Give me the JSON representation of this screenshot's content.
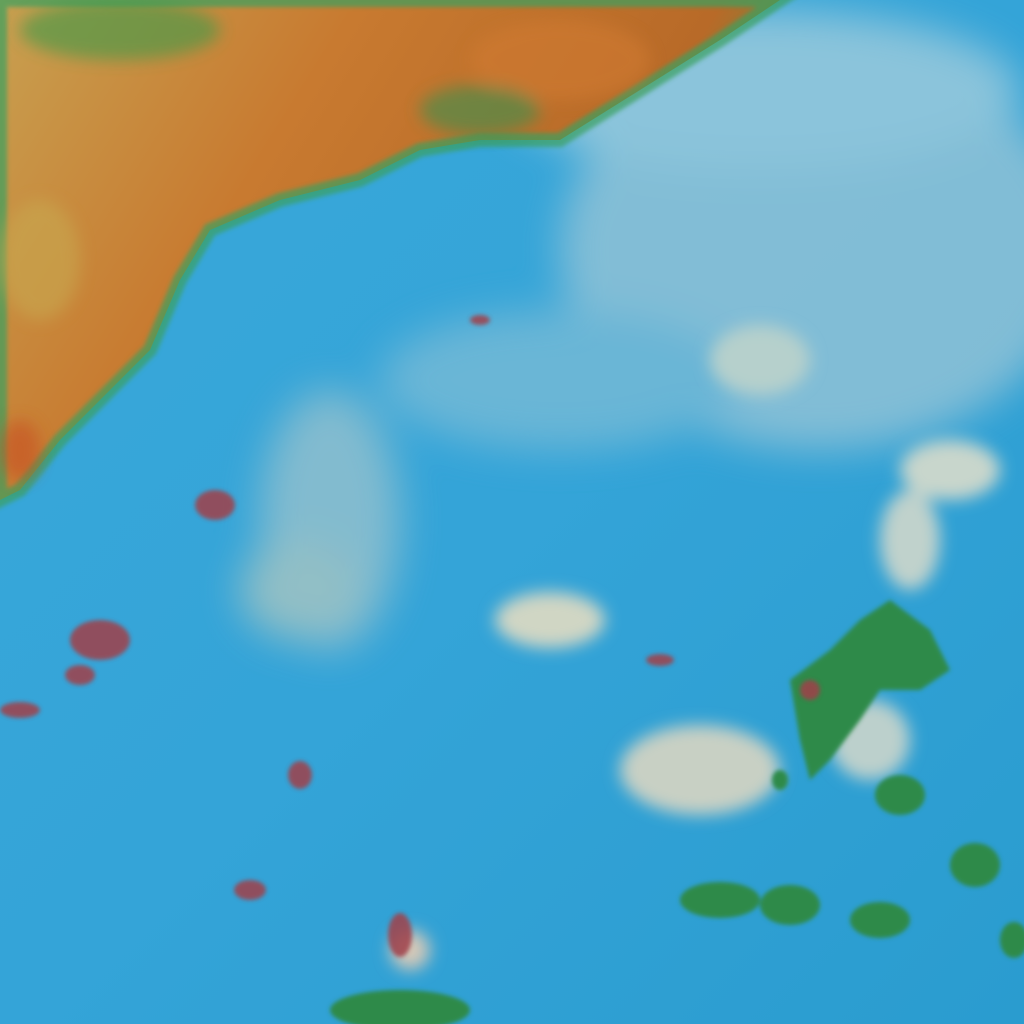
{
  "image": {
    "colors": {
      "ocean": "#2ea3d6",
      "ocean_light": "#5bb8e0",
      "haze": "#9cc7d8",
      "cloud": "#c8d6c8",
      "land_orange": "#c98a3a",
      "land_red": "#b85a20",
      "land_green": "#3fa050",
      "island_green": "#2f8a4a",
      "island_red": "#a03a40"
    }
  }
}
